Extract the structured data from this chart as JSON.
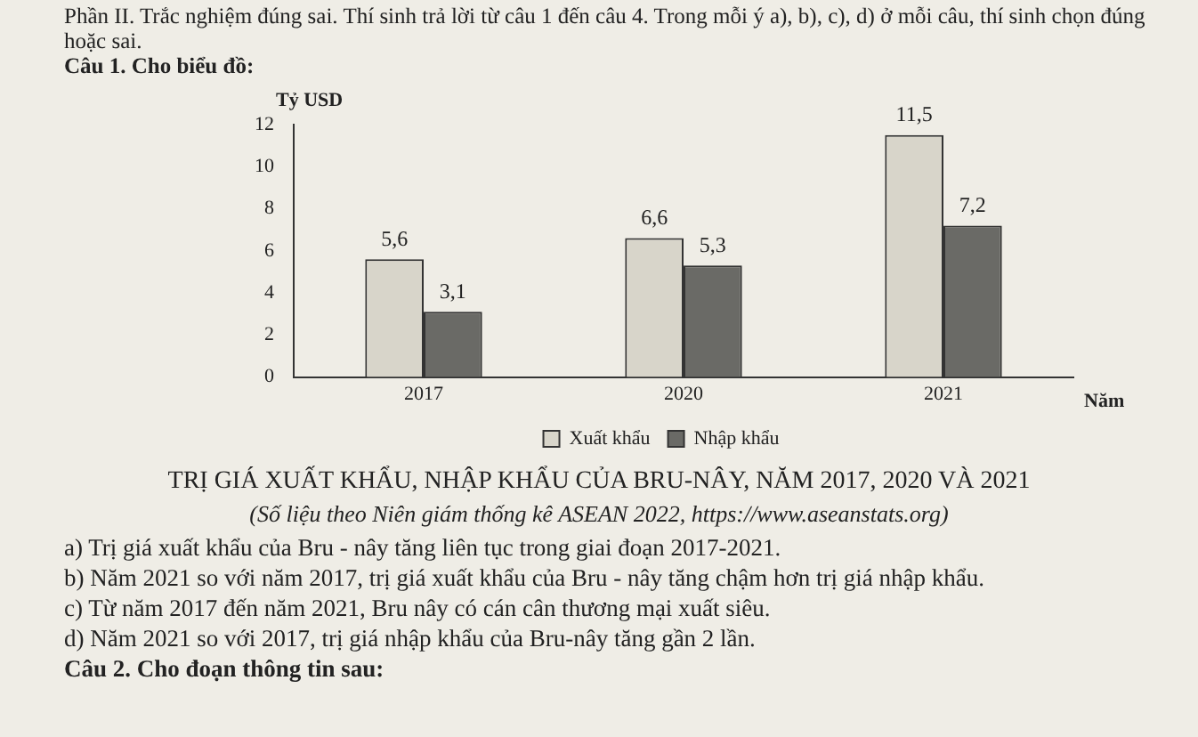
{
  "chart_data": {
    "type": "bar",
    "title": "TRỊ GIÁ XUẤT KHẨU, NHẬP KHẨU CỦA BRU-NÂY, NĂM 2017, 2020 VÀ 2021",
    "xlabel": "Năm",
    "ylabel": "Tỷ USD",
    "categories": [
      "2017",
      "2020",
      "2021"
    ],
    "series": [
      {
        "name": "Xuất khẩu",
        "color": "#d8d5ca",
        "values": [
          5.6,
          6.6,
          11.5
        ],
        "value_labels": [
          "5,6",
          "6,6",
          "11,5"
        ]
      },
      {
        "name": "Nhập khẩu",
        "color": "#6a6a66",
        "values": [
          3.1,
          5.3,
          7.2
        ],
        "value_labels": [
          "3,1",
          "5,3",
          "7,2"
        ]
      }
    ],
    "ylim": [
      0,
      12
    ],
    "yticks": [
      0,
      2,
      4,
      6,
      8,
      10,
      12
    ],
    "grid": false,
    "legend": "bottom",
    "annotations": [
      "Phần II. Trắc nghiệm đúng sai. Thí sinh trả lời từ câu 1 đến câu 4. Trong mỗi ý a), b), c), d) ở mỗi câu, thí sinh chọn đúng hoặc sai.",
      "Câu 1. Cho biểu đồ:",
      "(Số liệu theo Niên giám thống kê ASEAN 2022, https://www.aseanstats.org)",
      "a) Trị giá xuất khẩu của Bru - nây tăng liên tục trong giai đoạn 2017-2021.",
      "b) Năm 2021 so với năm 2017, trị giá xuất khẩu của Bru - nây tăng chậm hơn trị giá nhập khẩu.",
      "c) Từ năm 2017 đến năm 2021, Bru nây có cán cân thương mại xuất siêu.",
      "d) Năm 2021 so với 2017, trị giá nhập khẩu của Bru-nây tăng gần 2 lần.",
      "Câu 2. Cho đoạn thông tin sau:"
    ]
  }
}
